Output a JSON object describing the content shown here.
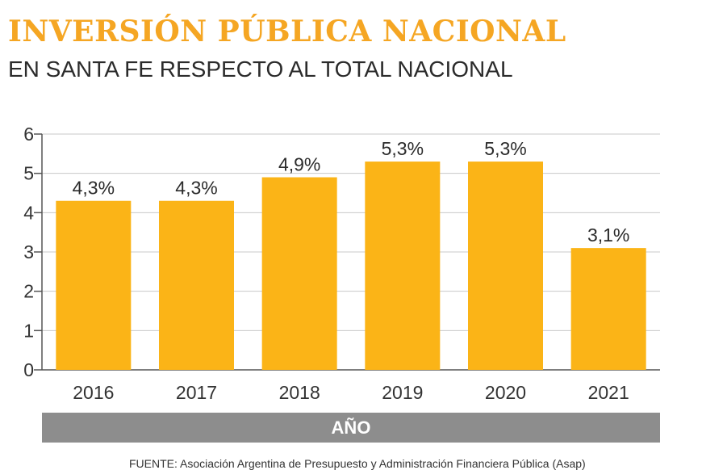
{
  "header": {
    "title": "INVERSIÓN PÚBLICA NACIONAL",
    "subtitle": "EN SANTA FE RESPECTO AL TOTAL NACIONAL"
  },
  "footer": {
    "source": "FUENTE: Asociación Argentina de Presupuesto y Administración Financiera Pública (Asap)"
  },
  "colors": {
    "bar": "#fbb417",
    "title": "#f5a623",
    "axis_band": "#8d8d8d"
  },
  "chart_data": {
    "type": "bar",
    "title": "INVERSIÓN PÚBLICA NACIONAL",
    "subtitle": "EN SANTA FE RESPECTO AL TOTAL NACIONAL",
    "xlabel": "AÑO",
    "ylabel": "",
    "categories": [
      "2016",
      "2017",
      "2018",
      "2019",
      "2020",
      "2021"
    ],
    "values": [
      4.3,
      4.3,
      4.9,
      5.3,
      5.3,
      3.1
    ],
    "data_labels": [
      "4,3%",
      "4,3%",
      "4,9%",
      "5,3%",
      "5,3%",
      "3,1%"
    ],
    "ylim": [
      0,
      6
    ],
    "yticks": [
      0,
      1,
      2,
      3,
      4,
      5,
      6
    ],
    "grid": true,
    "legend": "none"
  }
}
